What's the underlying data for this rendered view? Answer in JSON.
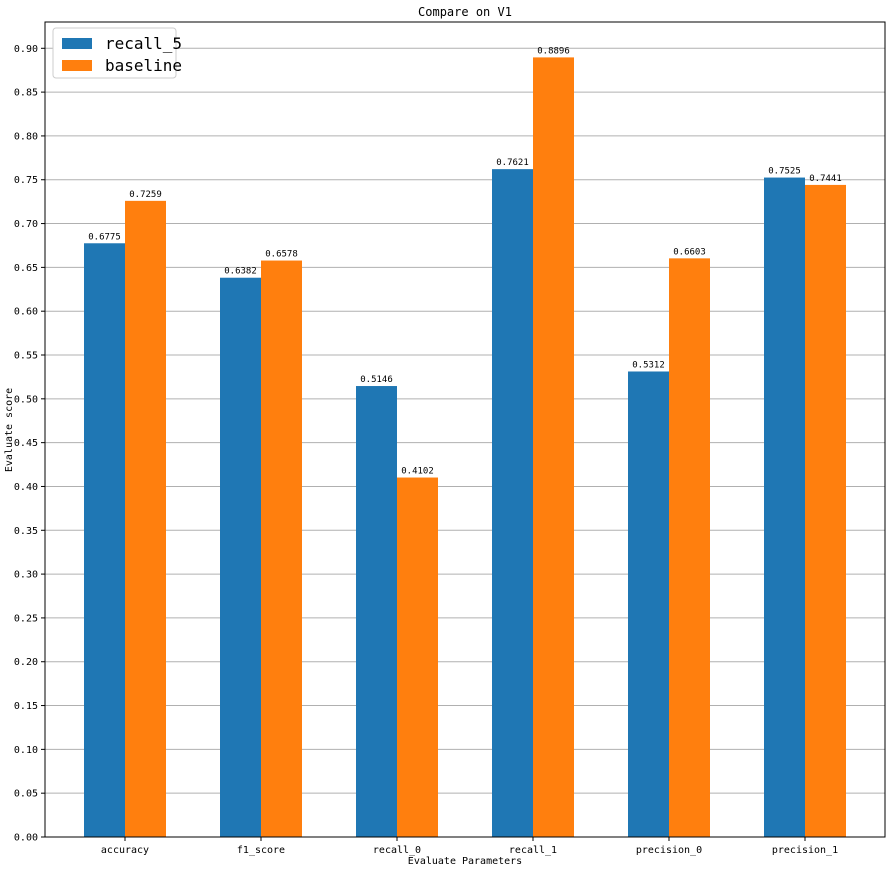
{
  "chart_data": {
    "type": "bar",
    "title": "Compare on V1",
    "xlabel": "Evaluate Parameters",
    "ylabel": "Evaluate score",
    "categories": [
      "accuracy",
      "f1_score",
      "recall_0",
      "recall_1",
      "precision_0",
      "precision_1"
    ],
    "series": [
      {
        "name": "recall_5",
        "values": [
          0.6775,
          0.6382,
          0.5146,
          0.7621,
          0.5312,
          0.7525
        ],
        "labels": [
          "0.6775",
          "0.6382",
          "0.5146",
          "0.7621",
          "0.5312",
          "0.7525"
        ],
        "color": "#1f77b4"
      },
      {
        "name": "baseline",
        "values": [
          0.7259,
          0.6578,
          0.4102,
          0.8896,
          0.6603,
          0.7441
        ],
        "labels": [
          "0.7259",
          "0.6578",
          "0.4102",
          "0.8896",
          "0.6603",
          "0.7441"
        ],
        "color": "#ff7f0e"
      }
    ],
    "ylim": [
      0,
      0.93
    ],
    "yticks": [
      "0.00",
      "0.05",
      "0.10",
      "0.15",
      "0.20",
      "0.25",
      "0.30",
      "0.35",
      "0.40",
      "0.45",
      "0.50",
      "0.55",
      "0.60",
      "0.65",
      "0.70",
      "0.75",
      "0.80",
      "0.85",
      "0.90"
    ],
    "grid": "horizontal",
    "legend_position": "top-left"
  }
}
